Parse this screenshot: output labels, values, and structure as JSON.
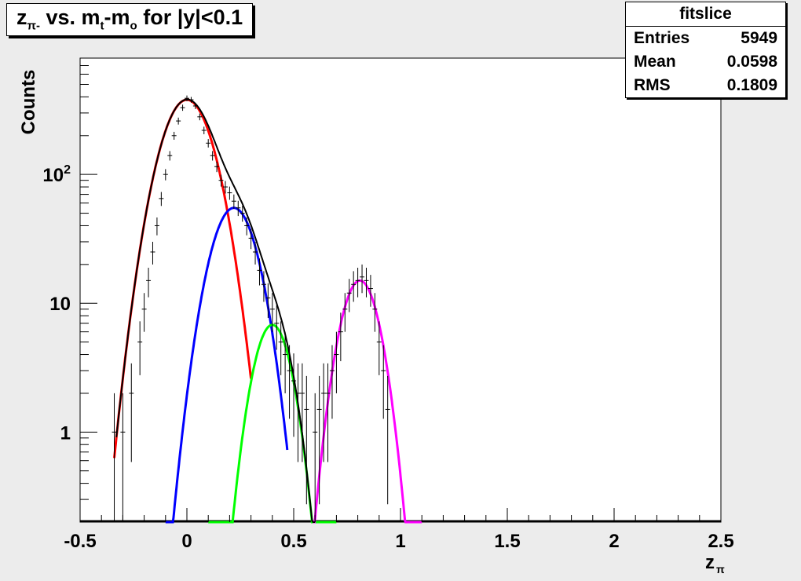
{
  "title": {
    "z": "z",
    "z_sub": "π-",
    "mid": " vs. m",
    "mt_sub": "t",
    "dash": "-m",
    "mo_sub": "o",
    "tail": " for |y|<0.1"
  },
  "stats": {
    "name": "fitslice",
    "rows": [
      {
        "label": "Entries",
        "value": "5949"
      },
      {
        "label": "Mean",
        "value": "0.0598"
      },
      {
        "label": "RMS",
        "value": "0.1809"
      }
    ]
  },
  "chart_data": {
    "type": "scatter",
    "title": "zπ- vs. mt-mo for |y|<0.1",
    "xlabel": "zπ",
    "ylabel": "Counts",
    "xlim": [
      -0.5,
      2.5
    ],
    "ylim": [
      0.2,
      800
    ],
    "yscale": "log",
    "grid": false,
    "x_ticks": [
      -0.5,
      0,
      0.5,
      1,
      1.5,
      2,
      2.5
    ],
    "x_tick_labels": [
      "-0.5",
      "0",
      "0.5",
      "1",
      "1.5",
      "2",
      "2.5"
    ],
    "y_ticks": [
      1,
      10,
      100
    ],
    "y_tick_labels": [
      "1",
      "10",
      "10^2"
    ],
    "histogram_points": [
      {
        "x": -0.34,
        "y": 1
      },
      {
        "x": -0.3,
        "y": 1
      },
      {
        "x": -0.26,
        "y": 2
      },
      {
        "x": -0.22,
        "y": 5
      },
      {
        "x": -0.2,
        "y": 9
      },
      {
        "x": -0.18,
        "y": 15
      },
      {
        "x": -0.16,
        "y": 25
      },
      {
        "x": -0.14,
        "y": 40
      },
      {
        "x": -0.12,
        "y": 65
      },
      {
        "x": -0.1,
        "y": 100
      },
      {
        "x": -0.08,
        "y": 140
      },
      {
        "x": -0.06,
        "y": 200
      },
      {
        "x": -0.04,
        "y": 260
      },
      {
        "x": -0.02,
        "y": 330
      },
      {
        "x": 0.0,
        "y": 390
      },
      {
        "x": 0.02,
        "y": 380
      },
      {
        "x": 0.04,
        "y": 340
      },
      {
        "x": 0.06,
        "y": 280
      },
      {
        "x": 0.08,
        "y": 220
      },
      {
        "x": 0.1,
        "y": 175
      },
      {
        "x": 0.12,
        "y": 140
      },
      {
        "x": 0.14,
        "y": 115
      },
      {
        "x": 0.16,
        "y": 90
      },
      {
        "x": 0.18,
        "y": 80
      },
      {
        "x": 0.2,
        "y": 72
      },
      {
        "x": 0.22,
        "y": 62
      },
      {
        "x": 0.24,
        "y": 55
      },
      {
        "x": 0.26,
        "y": 50
      },
      {
        "x": 0.28,
        "y": 40
      },
      {
        "x": 0.3,
        "y": 32
      },
      {
        "x": 0.32,
        "y": 25
      },
      {
        "x": 0.34,
        "y": 18
      },
      {
        "x": 0.36,
        "y": 14
      },
      {
        "x": 0.38,
        "y": 11
      },
      {
        "x": 0.4,
        "y": 9
      },
      {
        "x": 0.42,
        "y": 7
      },
      {
        "x": 0.44,
        "y": 5
      },
      {
        "x": 0.46,
        "y": 4
      },
      {
        "x": 0.48,
        "y": 3
      },
      {
        "x": 0.5,
        "y": 2.5
      },
      {
        "x": 0.52,
        "y": 2
      },
      {
        "x": 0.54,
        "y": 2
      },
      {
        "x": 0.56,
        "y": 1.5
      },
      {
        "x": 0.6,
        "y": 1
      },
      {
        "x": 0.62,
        "y": 1.5
      },
      {
        "x": 0.64,
        "y": 2
      },
      {
        "x": 0.66,
        "y": 2
      },
      {
        "x": 0.68,
        "y": 3
      },
      {
        "x": 0.7,
        "y": 4
      },
      {
        "x": 0.72,
        "y": 6
      },
      {
        "x": 0.74,
        "y": 9
      },
      {
        "x": 0.76,
        "y": 12
      },
      {
        "x": 0.78,
        "y": 14
      },
      {
        "x": 0.8,
        "y": 15
      },
      {
        "x": 0.82,
        "y": 16
      },
      {
        "x": 0.84,
        "y": 15
      },
      {
        "x": 0.86,
        "y": 13
      },
      {
        "x": 0.88,
        "y": 9
      },
      {
        "x": 0.9,
        "y": 5
      },
      {
        "x": 0.92,
        "y": 3
      },
      {
        "x": 0.94,
        "y": 1.5
      }
    ],
    "fit_components": [
      {
        "color": "#ff0000",
        "amplitude": 380,
        "mean": 0.0,
        "sigma": 0.095,
        "xmin": -0.34,
        "xmax": 0.3
      },
      {
        "color": "#0000ff",
        "amplitude": 55,
        "mean": 0.22,
        "sigma": 0.085,
        "xmin": -0.1,
        "xmax": 0.47
      },
      {
        "color": "#00ff00",
        "amplitude": 6.8,
        "mean": 0.4,
        "sigma": 0.07,
        "xmin": 0.1,
        "xmax": 0.7
      },
      {
        "color": "#ff00ff",
        "amplitude": 15,
        "mean": 0.81,
        "sigma": 0.072,
        "xmin": 0.59,
        "xmax": 1.1
      }
    ],
    "total_fit": {
      "color": "#000000",
      "xmin": -0.33,
      "xmax": 0.6
    }
  }
}
